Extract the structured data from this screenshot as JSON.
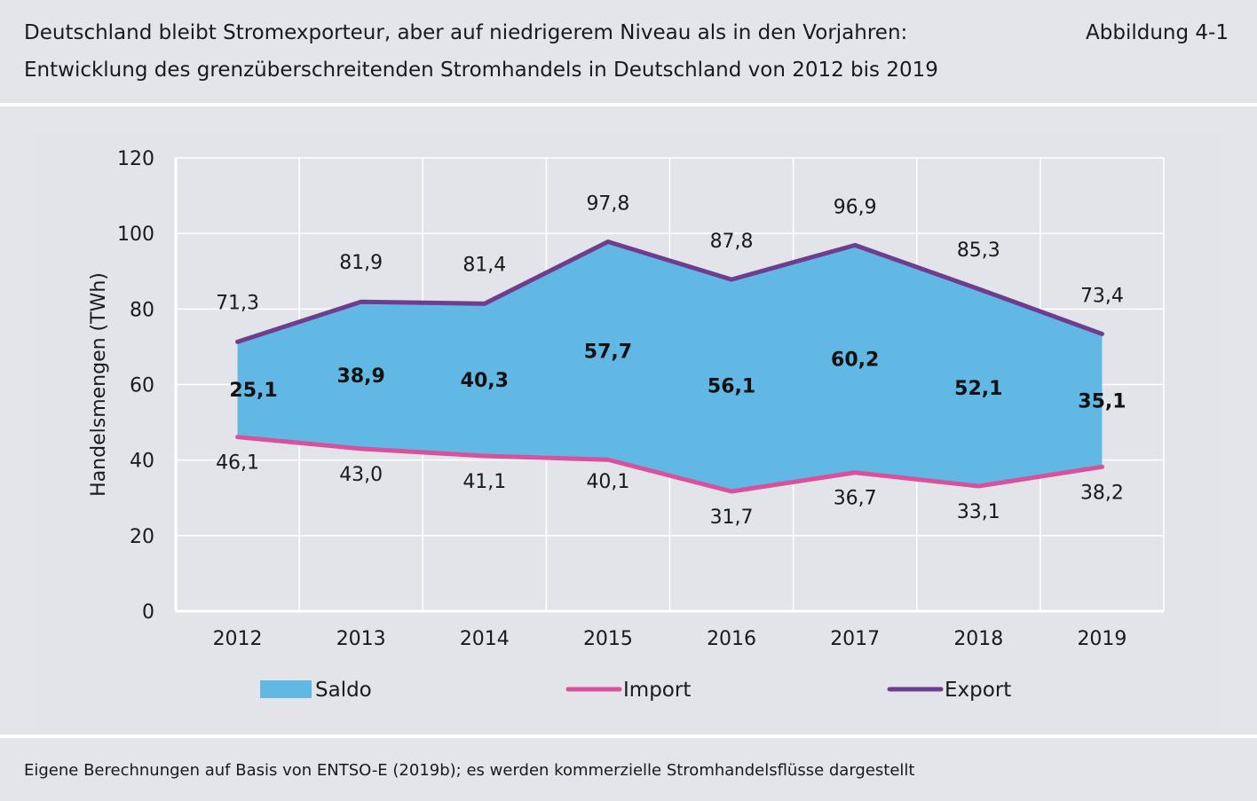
{
  "header": {
    "title_line1": "Deutschland bleibt Stromexporteur, aber auf niedrigerem Niveau als in den Vorjahren:",
    "title_line2": "Entwicklung des grenzüberschreitenden Stromhandels in Deutschland von 2012 bis 2019",
    "figure_label": "Abbildung 4-1"
  },
  "footer": {
    "source": "Eigene Berechnungen auf Basis von ENTSO-E (2019b); es werden kommerzielle Stromhandelsflüsse dargestellt"
  },
  "colors": {
    "saldo": "#62b8e4",
    "import": "#d9519b",
    "export": "#6e3d8e",
    "background": "#e3e5ea",
    "grid": "#ffffff"
  },
  "chart_data": {
    "type": "area",
    "categories": [
      "2012",
      "2013",
      "2014",
      "2015",
      "2016",
      "2017",
      "2018",
      "2019"
    ],
    "ylabel": "Handelsmengen (TWh)",
    "ylim": [
      0,
      120
    ],
    "yticks": [
      0,
      20,
      40,
      60,
      80,
      100,
      120
    ],
    "grid": true,
    "legend_position": "bottom",
    "series": [
      {
        "name": "Saldo",
        "kind": "area",
        "values": [
          "25,1",
          "38,9",
          "40,3",
          "57,7",
          "56,1",
          "60,2",
          "52,1",
          "35,1"
        ]
      },
      {
        "name": "Import",
        "kind": "line",
        "values": [
          46.1,
          43.0,
          41.1,
          40.1,
          31.7,
          36.7,
          33.1,
          38.2
        ],
        "labels": [
          "46,1",
          "43,0",
          "41,1",
          "40,1",
          "31,7",
          "36,7",
          "33,1",
          "38,2"
        ]
      },
      {
        "name": "Export",
        "kind": "line",
        "values": [
          71.3,
          81.9,
          81.4,
          97.8,
          87.8,
          96.9,
          85.3,
          73.4
        ],
        "labels": [
          "71,3",
          "81,9",
          "81,4",
          "97,8",
          "87,8",
          "96,9",
          "85,3",
          "73,4"
        ]
      }
    ]
  }
}
